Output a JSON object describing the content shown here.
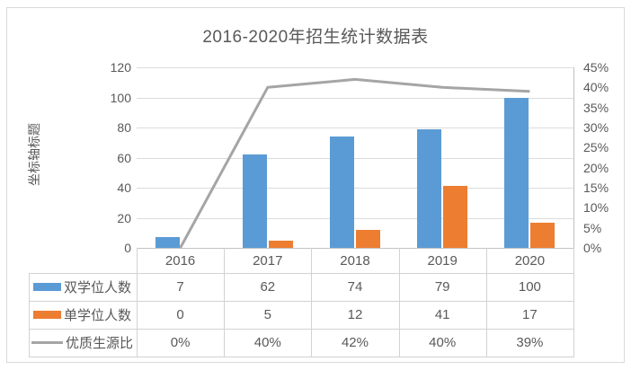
{
  "chart_data": {
    "type": "combo-bar-line",
    "title": "2016-2020年招生统计数据表",
    "left_axis_title": "坐标轴标题",
    "categories": [
      "2016",
      "2017",
      "2018",
      "2019",
      "2020"
    ],
    "series": [
      {
        "name": "双学位人数",
        "chart": "bar",
        "axis": "left",
        "color": "#5b9bd5",
        "values": [
          7,
          62,
          74,
          79,
          100
        ],
        "labels": [
          "7",
          "62",
          "74",
          "79",
          "100"
        ]
      },
      {
        "name": "单学位人数",
        "chart": "bar",
        "axis": "left",
        "color": "#ed7d31",
        "values": [
          0,
          5,
          12,
          41,
          17
        ],
        "labels": [
          "0",
          "5",
          "12",
          "41",
          "17"
        ]
      },
      {
        "name": "优质生源比",
        "chart": "line",
        "axis": "right",
        "color": "#a5a5a5",
        "values": [
          0,
          40,
          42,
          40,
          39
        ],
        "labels": [
          "0%",
          "40%",
          "42%",
          "40%",
          "39%"
        ]
      }
    ],
    "left_axis": {
      "min": 0,
      "max": 120,
      "step": 20,
      "ticks": [
        "120",
        "100",
        "80",
        "60",
        "40",
        "20",
        "0"
      ]
    },
    "right_axis": {
      "min": 0,
      "max": 45,
      "step": 5,
      "ticks": [
        "45%",
        "40%",
        "35%",
        "30%",
        "25%",
        "20%",
        "15%",
        "10%",
        "5%",
        "0%"
      ]
    },
    "grid": true,
    "legend_position": "data-table"
  },
  "colors": {
    "text": "#595959",
    "gridline": "#dcdcdc",
    "axis_line": "#c2c2c2",
    "table_border": "#d2d2d2",
    "frame_border": "#d9d9d9",
    "background": "#ffffff"
  }
}
